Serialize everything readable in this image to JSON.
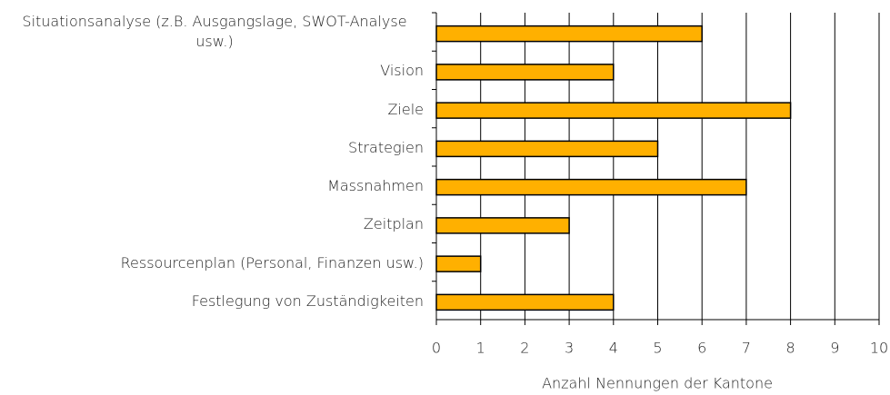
{
  "chart_data": {
    "type": "barh",
    "categories": [
      "Situationsanalyse (z.B. Ausgangslage, SWOT-Analyse usw.)",
      "Vision",
      "Ziele",
      "Strategien",
      "Massnahmen",
      "Zeitplan",
      "Ressourcenplan (Personal, Finanzen usw.)",
      "Festlegung von Zuständigkeiten"
    ],
    "values": [
      6,
      4,
      8,
      5,
      7,
      3,
      1,
      4
    ],
    "color": "#ffb000",
    "xlabel": "Anzahl Nennungen der Kantone",
    "xlim": [
      0,
      10
    ],
    "xticks": [
      0,
      1,
      2,
      3,
      4,
      5,
      6,
      7,
      8,
      9,
      10
    ],
    "grid": true
  }
}
